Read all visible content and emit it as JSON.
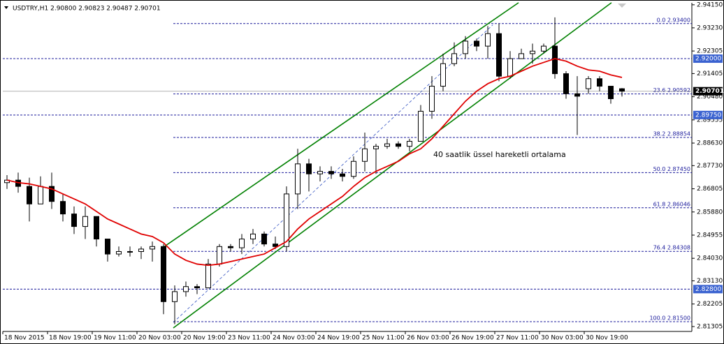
{
  "chart_data": {
    "type": "candlestick",
    "title": "USDTRY,H1  2.90800 2.90823 2.90487 2.90701",
    "annotation": "40 saatlik üssel hareketli ortalama",
    "categories": [
      "18 Nov 2015",
      null,
      null,
      null,
      "18 Nov 19:00",
      null,
      null,
      null,
      "19 Nov 11:00",
      null,
      null,
      null,
      "20 Nov 03:00",
      null,
      null,
      null,
      "20 Nov 19:00",
      null,
      null,
      null,
      "23 Nov 11:00",
      null,
      null,
      null,
      "24 Nov 03:00",
      null,
      null,
      null,
      "24 Nov 19:00",
      null,
      null,
      null,
      "25 Nov 11:00",
      null,
      null,
      null,
      "26 Nov 03:00",
      null,
      null,
      null,
      "26 Nov 19:00",
      null,
      null,
      null,
      "27 Nov 11:00",
      null,
      null,
      null,
      "30 Nov 03:00",
      null,
      null,
      null,
      "30 Nov 19:00",
      null,
      null,
      null
    ],
    "open": [
      2.8705,
      2.8715,
      2.869,
      2.862,
      2.869,
      2.863,
      2.858,
      2.853,
      2.857,
      2.848,
      2.842,
      2.843,
      2.843,
      2.844,
      2.845,
      2.823,
      2.827,
      2.829,
      2.8285,
      2.838,
      2.845,
      2.8445,
      2.848,
      2.85,
      2.846,
      2.845,
      2.866,
      2.878,
      2.874,
      2.875,
      2.874,
      2.873,
      2.879,
      2.884,
      2.885,
      2.886,
      2.885,
      2.887,
      2.899,
      2.909,
      2.918,
      2.922,
      2.927,
      2.925,
      2.93,
      2.913,
      2.92,
      2.922,
      2.923,
      2.925,
      2.914,
      2.906,
      2.908,
      2.912,
      2.909,
      2.908
    ],
    "high": [
      2.8735,
      2.8745,
      2.8725,
      2.873,
      2.8745,
      2.866,
      2.861,
      2.861,
      2.857,
      2.848,
      2.845,
      2.845,
      2.845,
      2.847,
      2.846,
      2.8295,
      2.831,
      2.83,
      2.84,
      2.846,
      2.846,
      2.85,
      2.852,
      2.851,
      2.849,
      2.869,
      2.884,
      2.88,
      2.877,
      2.877,
      2.876,
      2.881,
      2.8905,
      2.886,
      2.888,
      2.887,
      2.888,
      2.9015,
      2.913,
      2.922,
      2.9265,
      2.929,
      2.928,
      2.933,
      2.934,
      2.923,
      2.924,
      2.926,
      2.926,
      2.9365,
      2.915,
      2.913,
      2.913,
      2.913,
      2.909,
      2.90823
    ],
    "low": [
      2.868,
      2.8665,
      2.855,
      2.862,
      2.86,
      2.855,
      2.85,
      2.848,
      2.845,
      2.839,
      2.841,
      2.841,
      2.84,
      2.839,
      2.818,
      2.814,
      2.825,
      2.826,
      2.8285,
      2.837,
      2.843,
      2.842,
      2.846,
      2.845,
      2.844,
      2.843,
      2.86,
      2.867,
      2.871,
      2.872,
      2.871,
      2.872,
      2.875,
      2.874,
      2.884,
      2.884,
      2.883,
      2.887,
      2.896,
      2.907,
      2.917,
      2.92,
      2.923,
      2.92,
      2.911,
      2.912,
      2.92,
      2.918,
      2.922,
      2.912,
      2.904,
      2.8895,
      2.906,
      2.907,
      2.902,
      2.90487
    ],
    "close": [
      2.8715,
      2.869,
      2.862,
      2.869,
      2.863,
      2.858,
      2.853,
      2.857,
      2.848,
      2.842,
      2.843,
      2.843,
      2.844,
      2.845,
      2.823,
      2.827,
      2.829,
      2.8285,
      2.838,
      2.845,
      2.8445,
      2.848,
      2.85,
      2.846,
      2.845,
      2.866,
      2.878,
      2.874,
      2.875,
      2.874,
      2.873,
      2.879,
      2.884,
      2.885,
      2.886,
      2.885,
      2.887,
      2.899,
      2.909,
      2.918,
      2.922,
      2.927,
      2.925,
      2.93,
      2.913,
      2.92,
      2.922,
      2.923,
      2.925,
      2.914,
      2.906,
      2.905,
      2.912,
      2.909,
      2.904,
      2.90701
    ],
    "ema": {
      "color": "#e00000",
      "values": [
        2.8715,
        2.8705,
        2.87,
        2.869,
        2.868,
        2.866,
        2.864,
        2.862,
        2.859,
        2.856,
        2.854,
        2.852,
        2.85,
        2.849,
        2.8465,
        2.842,
        2.8395,
        2.838,
        2.8375,
        2.838,
        2.839,
        2.84,
        2.841,
        2.842,
        2.8445,
        2.847,
        2.852,
        2.856,
        2.859,
        2.862,
        2.865,
        2.869,
        2.8725,
        2.875,
        2.877,
        2.879,
        2.882,
        2.884,
        2.888,
        2.893,
        2.898,
        2.903,
        2.907,
        2.91,
        2.912,
        2.913,
        2.915,
        2.917,
        2.9185,
        2.92,
        2.919,
        2.917,
        2.9155,
        2.915,
        2.9135,
        2.9125
      ]
    },
    "trendlines": [
      {
        "color": "#008000",
        "x": [
          13.75,
          45.75
        ],
        "values": [
          2.844,
          2.94234
        ]
      },
      {
        "color": "#008000",
        "x": [
          14.875,
          54.06
        ],
        "values": [
          2.8125,
          2.94234
        ]
      },
      {
        "color": "#3050c0",
        "dashed": true,
        "x": [
          14.875,
          43.45
        ],
        "values": [
          2.8147,
          2.9335
        ]
      }
    ],
    "fib_start": 14.875,
    "fib_levels": [
      {
        "value": 2.934,
        "label": "0.0 2.93400"
      },
      {
        "value": 2.90592,
        "label": "23.6 2.90592"
      },
      {
        "value": 2.88854,
        "label": "38.2 2.88854"
      },
      {
        "value": 2.8745,
        "label": "50.0 2.87450"
      },
      {
        "value": 2.86046,
        "label": "61.8 2.86046"
      },
      {
        "value": 2.84308,
        "label": "76.4 2.84308"
      },
      {
        "value": 2.815,
        "label": "100.0 2.81500"
      }
    ],
    "hlines": [
      {
        "value": 2.92,
        "label": "2.92000"
      },
      {
        "value": 2.8975,
        "label": "2.89750"
      },
      {
        "value": 2.828,
        "label": "2.82800"
      }
    ],
    "current_price": {
      "value": 2.90701,
      "label": "2.90701"
    },
    "ylim": [
      2.8111,
      2.9423
    ],
    "yticks": [
      {
        "value": 2.9415,
        "label": "2.94150"
      },
      {
        "value": 2.9323,
        "label": "2.93230"
      },
      {
        "value": 2.92305,
        "label": "2.92305"
      },
      {
        "value": 2.91405,
        "label": "2.91405"
      },
      {
        "value": 2.9048,
        "label": "2.90480"
      },
      {
        "value": 2.89555,
        "label": "2.89555"
      },
      {
        "value": 2.8863,
        "label": "2.88630"
      },
      {
        "value": 2.8773,
        "label": "2.87730"
      },
      {
        "value": 2.86805,
        "label": "2.86805"
      },
      {
        "value": 2.8588,
        "label": "2.85880"
      },
      {
        "value": 2.84955,
        "label": "2.84955"
      },
      {
        "value": 2.8403,
        "label": "2.84030"
      },
      {
        "value": 2.8313,
        "label": "2.83130"
      },
      {
        "value": 2.82205,
        "label": "2.82205"
      },
      {
        "value": 2.81305,
        "label": "2.81305"
      }
    ]
  }
}
